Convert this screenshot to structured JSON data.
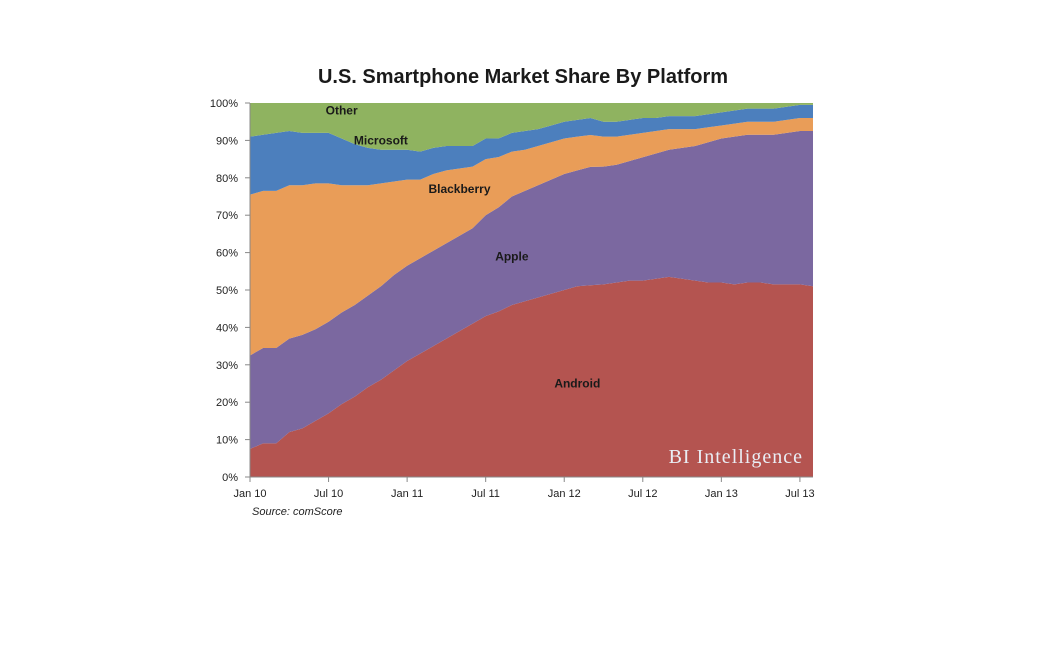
{
  "chart_data": {
    "type": "area",
    "stacked": true,
    "normalized": true,
    "title": "U.S. Smartphone Market Share By Platform",
    "source": "Source: comScore",
    "watermark": "BI Intelligence",
    "xlabel": "",
    "ylabel": "",
    "ylim": [
      0,
      100
    ],
    "y_ticks": [
      "0%",
      "10%",
      "20%",
      "30%",
      "40%",
      "50%",
      "60%",
      "70%",
      "80%",
      "90%",
      "100%"
    ],
    "x_ticks": [
      "Jan 10",
      "Jul 10",
      "Jan 11",
      "Jul 11",
      "Jan 12",
      "Jul 12",
      "Jan 13",
      "Jul 13"
    ],
    "x_tick_months": [
      0,
      6,
      12,
      18,
      24,
      30,
      36,
      42
    ],
    "x_months": [
      0,
      1,
      2,
      3,
      4,
      5,
      6,
      7,
      8,
      9,
      10,
      11,
      12,
      13,
      14,
      15,
      16,
      17,
      18,
      19,
      20,
      21,
      22,
      23,
      24,
      25,
      26,
      27,
      28,
      29,
      30,
      31,
      32,
      33,
      34,
      35,
      36,
      37,
      38,
      39,
      40,
      41,
      42,
      43
    ],
    "legend_position": "inline",
    "series": [
      {
        "name": "Android",
        "color": "#b45450",
        "values": [
          7.5,
          9,
          9,
          12,
          13,
          15,
          17,
          19.5,
          21.5,
          24,
          26,
          28.5,
          31,
          33,
          35,
          37,
          39,
          41,
          43,
          44.5,
          46,
          47,
          48,
          49,
          50,
          51,
          51,
          51.5,
          52,
          52.5,
          52.5,
          53,
          53.5,
          53,
          52.5,
          52,
          52,
          51.5,
          52,
          52,
          51.5,
          51.5,
          51.5,
          51
        ]
      },
      {
        "name": "Apple",
        "color": "#7b68a0",
        "values": [
          25,
          25.5,
          25.5,
          25,
          25,
          24.5,
          24.5,
          24.5,
          24.5,
          24.5,
          25,
          25.5,
          25.5,
          25.5,
          25.5,
          25.5,
          25.5,
          25.5,
          27,
          28,
          29,
          29.5,
          30,
          30.5,
          31,
          31,
          31.5,
          31.5,
          31.5,
          32,
          33,
          33.5,
          34,
          35,
          36,
          37.5,
          38.5,
          39.5,
          39.5,
          39.5,
          40,
          40.5,
          41,
          41.5
        ]
      },
      {
        "name": "Blackberry",
        "color": "#e99d58",
        "values": [
          43,
          42,
          42,
          41,
          40,
          39,
          37,
          34,
          32,
          29.5,
          27.5,
          25,
          23,
          21,
          20.5,
          19.5,
          18,
          16.5,
          15,
          13.5,
          12,
          11,
          10.5,
          10,
          9.5,
          9,
          8.5,
          8,
          7.5,
          7,
          6.5,
          6,
          5.5,
          5,
          4.5,
          4,
          3.5,
          3.5,
          3.5,
          3.5,
          3.5,
          3.5,
          3.5,
          3.5
        ]
      },
      {
        "name": "Microsoft",
        "color": "#4c7fbd",
        "values": [
          15.5,
          15,
          15.5,
          14.5,
          14,
          13.5,
          13.5,
          12.5,
          11,
          10,
          9,
          8.5,
          8,
          7.5,
          7,
          6.5,
          6,
          5.5,
          5.5,
          5,
          5,
          5,
          4.5,
          4.5,
          4.5,
          4.5,
          4.5,
          4,
          4,
          4,
          4,
          3.5,
          3.5,
          3.5,
          3.5,
          3.5,
          3.5,
          3.5,
          3.5,
          3.5,
          3.5,
          3.5,
          3.5,
          3.5
        ]
      },
      {
        "name": "Other",
        "color": "#8fb360",
        "values": [
          9,
          8.5,
          8,
          7.5,
          8,
          8,
          8,
          9.5,
          11,
          12,
          12.5,
          12.5,
          12.5,
          13,
          12,
          11.5,
          11.5,
          11.5,
          9.5,
          9.5,
          8,
          7.5,
          7,
          6,
          5,
          4.5,
          4,
          5,
          5,
          4.5,
          4,
          4,
          3.5,
          3.5,
          3.5,
          3,
          2.5,
          2,
          1.5,
          1.5,
          1.5,
          1,
          0.5,
          0.5
        ]
      }
    ],
    "series_labels": [
      {
        "name": "Android",
        "month": 25,
        "value": 25
      },
      {
        "name": "Apple",
        "month": 20,
        "value": 59
      },
      {
        "name": "Blackberry",
        "month": 16,
        "value": 77
      },
      {
        "name": "Microsoft",
        "month": 10,
        "value": 90
      },
      {
        "name": "Other",
        "month": 7,
        "value": 98
      }
    ]
  }
}
